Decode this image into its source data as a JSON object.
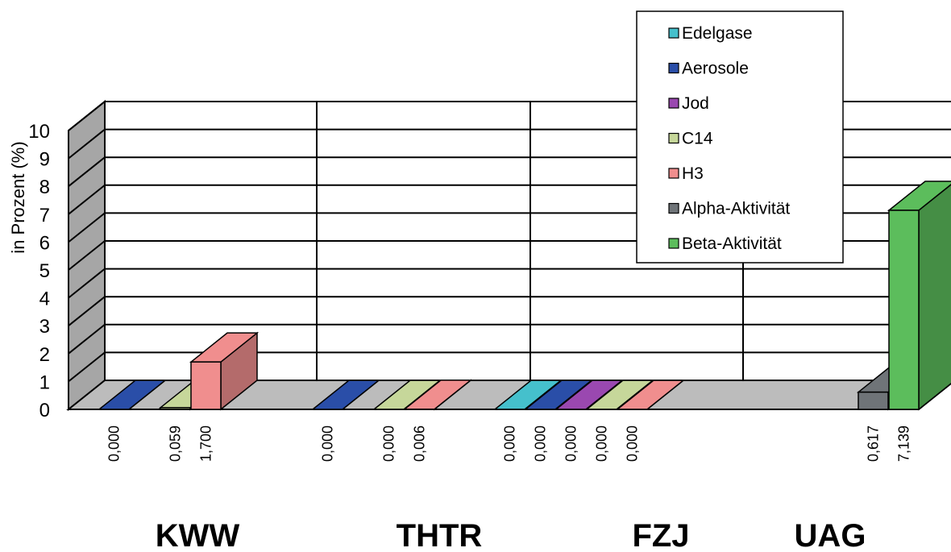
{
  "chart_data": {
    "type": "bar",
    "ylabel": "in Prozent (%)",
    "ylim": [
      0,
      10
    ],
    "y_ticks": [
      "0",
      "1",
      "2",
      "3",
      "4",
      "5",
      "6",
      "7",
      "8",
      "9",
      "10"
    ],
    "grid": true,
    "legend_position": "top-right",
    "categories": [
      "KWW",
      "THTR",
      "FZJ",
      "UAG"
    ],
    "series": [
      {
        "name": "Edelgase",
        "color": "#45c0cc",
        "values": [
          null,
          null,
          0.0,
          null
        ],
        "labels": [
          "",
          "",
          "0,000",
          ""
        ]
      },
      {
        "name": "Aerosole",
        "color": "#2a4ea8",
        "values": [
          0.0,
          0.0,
          0.0,
          null
        ],
        "labels": [
          "0,000",
          "0,000",
          "0,000",
          ""
        ]
      },
      {
        "name": "Jod",
        "color": "#9a48b0",
        "values": [
          null,
          null,
          0.0,
          null
        ],
        "labels": [
          "",
          "",
          "0,000",
          ""
        ]
      },
      {
        "name": "C14",
        "color": "#c6d79a",
        "values": [
          0.059,
          0.0,
          0.0,
          null
        ],
        "labels": [
          "0,059",
          "0,000",
          "0,000",
          ""
        ]
      },
      {
        "name": "H3",
        "color": "#f08e8e",
        "values": [
          1.7,
          0.006,
          0.0,
          null
        ],
        "labels": [
          "1,700",
          "0,006",
          "0,000",
          ""
        ]
      },
      {
        "name": "Alpha-Aktivität",
        "color": "#6f7478",
        "values": [
          null,
          null,
          null,
          0.617
        ],
        "labels": [
          "",
          "",
          "",
          "0,617"
        ]
      },
      {
        "name": "Beta-Aktivität",
        "color": "#5cbd5c",
        "values": [
          null,
          null,
          null,
          7.139
        ],
        "labels": [
          "",
          "",
          "",
          "7,139"
        ]
      }
    ]
  }
}
